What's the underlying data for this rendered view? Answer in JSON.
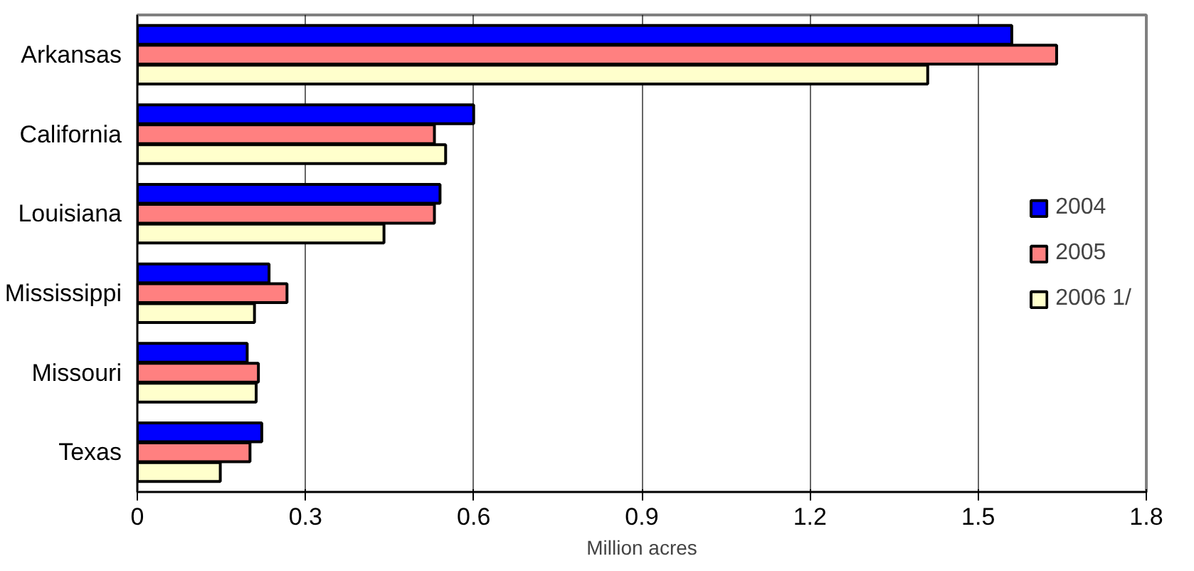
{
  "chart_data": {
    "type": "bar",
    "orientation": "horizontal",
    "xlabel": "Million acres",
    "categories": [
      "Arkansas",
      "California",
      "Louisiana",
      "Mississippi",
      "Missouri",
      "Texas"
    ],
    "series": [
      {
        "name": "2004",
        "color": "#0000ff",
        "values": [
          1.56,
          0.6,
          0.54,
          0.235,
          0.196,
          0.222
        ]
      },
      {
        "name": "2005",
        "color": "#ff8080",
        "values": [
          1.64,
          0.53,
          0.53,
          0.267,
          0.216,
          0.201
        ]
      },
      {
        "name": "2006 1/",
        "color": "#ffffcc",
        "values": [
          1.41,
          0.55,
          0.44,
          0.209,
          0.212,
          0.148
        ]
      }
    ],
    "xlim": [
      0,
      1.8
    ],
    "xticks": [
      0,
      0.3,
      0.6,
      0.9,
      1.2,
      1.5,
      1.8
    ],
    "grid": "x",
    "legend": "right"
  }
}
